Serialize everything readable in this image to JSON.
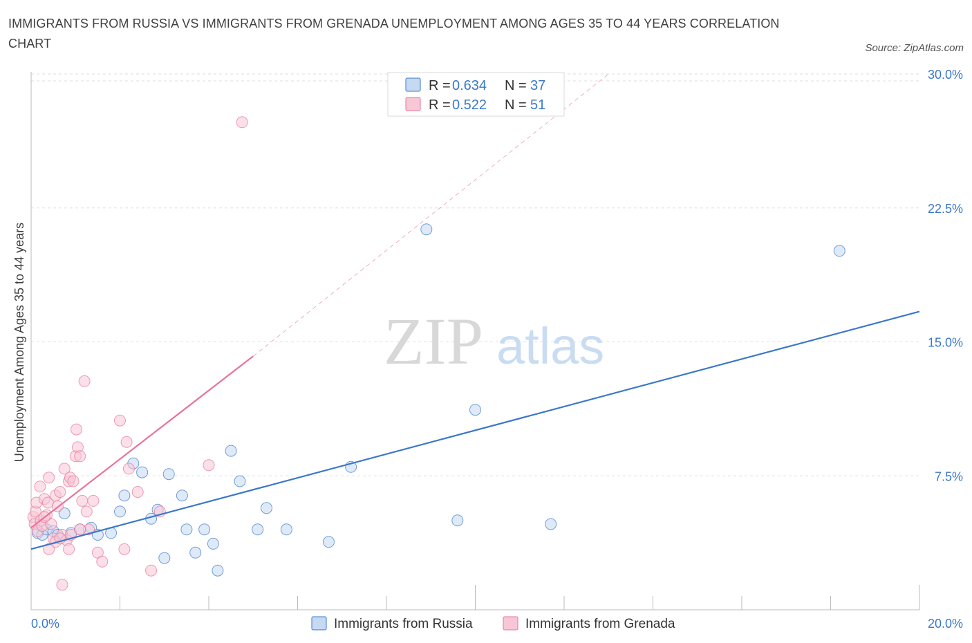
{
  "title": "IMMIGRANTS FROM RUSSIA VS IMMIGRANTS FROM GRENADA UNEMPLOYMENT AMONG AGES 35 TO 44 YEARS CORRELATION CHART",
  "source": "Source: ZipAtlas.com",
  "watermark": {
    "zip": "ZIP",
    "atlas": "atlas"
  },
  "colors": {
    "russia": "#3a78c9",
    "russia_fill": "#c5d9f3",
    "grenada": "#e8739a",
    "grenada_fill": "#f7c7d6",
    "tick": "#3a78c9",
    "grid": "#dddddd"
  },
  "chart_data": {
    "type": "scatter",
    "xlabel": "",
    "ylabel": "Unemployment Among Ages 35 to 44 years",
    "xlim": [
      0,
      20
    ],
    "ylim": [
      0,
      30
    ],
    "y_ticks": [
      7.5,
      15,
      22.5,
      30
    ],
    "y_tick_labels": [
      "7.5%",
      "15.0%",
      "22.5%",
      "30.0%"
    ],
    "x_tick_labels": [
      "0.0%",
      "20.0%"
    ],
    "grid": true,
    "legend": {
      "position": "top-center",
      "entries": [
        {
          "r_label": "R =",
          "r": "0.634",
          "n_label": "N =",
          "n": "37"
        },
        {
          "r_label": "R =",
          "r": "0.522",
          "n_label": "N =",
          "n": "51"
        }
      ]
    },
    "series": [
      {
        "name": "Immigrants from Russia",
        "color": "#3a78c9",
        "trend": {
          "x": [
            0,
            20
          ],
          "y": [
            3.4,
            16.7
          ],
          "dashed_extension": false
        },
        "points": [
          [
            0.15,
            4.3
          ],
          [
            0.25,
            4.2
          ],
          [
            0.35,
            4.5
          ],
          [
            0.5,
            4.4
          ],
          [
            0.75,
            5.4
          ],
          [
            0.9,
            4.3
          ],
          [
            1.1,
            4.5
          ],
          [
            1.35,
            4.6
          ],
          [
            1.5,
            4.2
          ],
          [
            1.8,
            4.3
          ],
          [
            2.0,
            5.5
          ],
          [
            2.1,
            6.4
          ],
          [
            2.3,
            8.2
          ],
          [
            2.5,
            7.7
          ],
          [
            2.7,
            5.1
          ],
          [
            2.85,
            5.6
          ],
          [
            3.0,
            2.9
          ],
          [
            3.1,
            7.6
          ],
          [
            3.4,
            6.4
          ],
          [
            3.5,
            4.5
          ],
          [
            3.7,
            3.2
          ],
          [
            3.9,
            4.5
          ],
          [
            4.1,
            3.7
          ],
          [
            4.2,
            2.2
          ],
          [
            4.5,
            8.9
          ],
          [
            4.7,
            7.2
          ],
          [
            5.1,
            4.5
          ],
          [
            5.3,
            5.7
          ],
          [
            5.75,
            4.5
          ],
          [
            6.7,
            3.8
          ],
          [
            7.2,
            8.0
          ],
          [
            8.9,
            21.3
          ],
          [
            9.6,
            5.0
          ],
          [
            10.0,
            11.2
          ],
          [
            11.7,
            4.8
          ],
          [
            18.2,
            20.1
          ],
          [
            0.6,
            4.2
          ]
        ]
      },
      {
        "name": "Immigrants from Grenada",
        "color": "#e8739a",
        "trend": {
          "x": [
            0,
            5.0
          ],
          "y": [
            4.6,
            14.2
          ],
          "dashed_to": [
            13.0,
            30.0
          ]
        },
        "points": [
          [
            0.05,
            5.2
          ],
          [
            0.08,
            4.8
          ],
          [
            0.1,
            5.5
          ],
          [
            0.12,
            6.0
          ],
          [
            0.15,
            4.4
          ],
          [
            0.2,
            6.9
          ],
          [
            0.22,
            5.0
          ],
          [
            0.25,
            4.7
          ],
          [
            0.3,
            6.2
          ],
          [
            0.35,
            5.3
          ],
          [
            0.38,
            6.0
          ],
          [
            0.4,
            7.4
          ],
          [
            0.45,
            4.8
          ],
          [
            0.5,
            4.0
          ],
          [
            0.55,
            6.4
          ],
          [
            0.6,
            5.8
          ],
          [
            0.65,
            6.6
          ],
          [
            0.7,
            4.2
          ],
          [
            0.75,
            7.9
          ],
          [
            0.8,
            3.9
          ],
          [
            0.85,
            7.2
          ],
          [
            0.88,
            7.4
          ],
          [
            0.9,
            4.2
          ],
          [
            0.95,
            7.2
          ],
          [
            1.0,
            8.6
          ],
          [
            1.02,
            10.1
          ],
          [
            1.05,
            9.1
          ],
          [
            1.1,
            8.6
          ],
          [
            1.15,
            6.1
          ],
          [
            1.2,
            12.8
          ],
          [
            1.25,
            5.5
          ],
          [
            1.3,
            4.5
          ],
          [
            1.4,
            6.1
          ],
          [
            1.5,
            3.2
          ],
          [
            1.6,
            2.7
          ],
          [
            2.0,
            10.6
          ],
          [
            2.1,
            3.4
          ],
          [
            2.15,
            9.4
          ],
          [
            2.2,
            7.9
          ],
          [
            2.4,
            6.6
          ],
          [
            2.7,
            2.2
          ],
          [
            2.9,
            5.5
          ],
          [
            4.0,
            8.1
          ],
          [
            4.75,
            27.3
          ],
          [
            0.7,
            1.4
          ],
          [
            0.55,
            3.8
          ],
          [
            0.4,
            3.4
          ],
          [
            0.85,
            3.4
          ],
          [
            0.3,
            5.2
          ],
          [
            0.65,
            4.0
          ],
          [
            1.1,
            4.5
          ]
        ]
      }
    ]
  },
  "bottom_legend": {
    "russia": "Immigrants from Russia",
    "grenada": "Immigrants from Grenada"
  }
}
